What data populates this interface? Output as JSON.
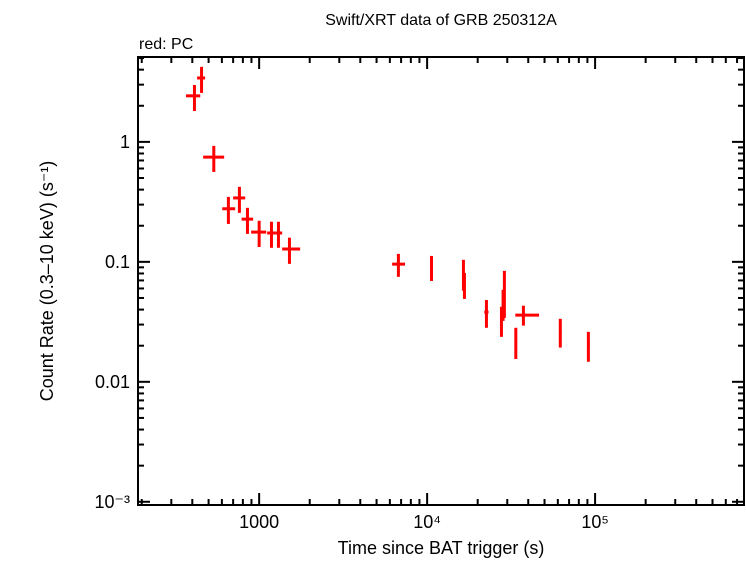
{
  "chart_data": {
    "type": "scatter",
    "title": "Swift/XRT data of GRB 250312A",
    "legend_note": "red: PC",
    "xlabel": "Time since BAT trigger (s)",
    "ylabel": "Count Rate (0.3–10 keV) (s⁻¹)",
    "x_scale": "log",
    "y_scale": "log",
    "xlim": [
      190,
      770000
    ],
    "ylim": [
      0.00094,
      5.1
    ],
    "x_ticks": [
      {
        "value": 1000,
        "label": "1000"
      },
      {
        "value": 10000,
        "label": "10⁴"
      },
      {
        "value": 100000,
        "label": "10⁵"
      }
    ],
    "y_ticks": [
      {
        "value": 1,
        "label": "1"
      },
      {
        "value": 0.1,
        "label": "0.1"
      },
      {
        "value": 0.01,
        "label": "0.01"
      },
      {
        "value": 0.001,
        "label": "10⁻³"
      }
    ],
    "grid": false,
    "series": [
      {
        "color": "#ff0000",
        "points": [
          {
            "t": 412,
            "t_lo": 367,
            "t_hi": 446,
            "rate": 2.42,
            "rate_lo": 1.81,
            "rate_hi": 2.98
          },
          {
            "t": 454,
            "t_lo": 427,
            "t_hi": 477,
            "rate": 3.41,
            "rate_lo": 2.56,
            "rate_hi": 4.22
          },
          {
            "t": 537,
            "t_lo": 464,
            "t_hi": 619,
            "rate": 0.746,
            "rate_lo": 0.562,
            "rate_hi": 0.926
          },
          {
            "t": 656,
            "t_lo": 603,
            "t_hi": 720,
            "rate": 0.277,
            "rate_lo": 0.207,
            "rate_hi": 0.348
          },
          {
            "t": 763,
            "t_lo": 700,
            "t_hi": 826,
            "rate": 0.341,
            "rate_lo": 0.256,
            "rate_hi": 0.422
          },
          {
            "t": 852,
            "t_lo": 786,
            "t_hi": 921,
            "rate": 0.227,
            "rate_lo": 0.171,
            "rate_hi": 0.282
          },
          {
            "t": 1000,
            "t_lo": 896,
            "t_hi": 1101,
            "rate": 0.177,
            "rate_lo": 0.133,
            "rate_hi": 0.22
          },
          {
            "t": 1184,
            "t_lo": 1116,
            "t_hi": 1245,
            "rate": 0.174,
            "rate_lo": 0.131,
            "rate_hi": 0.216
          },
          {
            "t": 1303,
            "t_lo": 1245,
            "t_hi": 1371,
            "rate": 0.174,
            "rate_lo": 0.131,
            "rate_hi": 0.216
          },
          {
            "t": 1515,
            "t_lo": 1371,
            "t_hi": 1754,
            "rate": 0.128,
            "rate_lo": 0.0962,
            "rate_hi": 0.159
          },
          {
            "t": 6745,
            "t_lo": 6191,
            "t_hi": 7389,
            "rate": 0.0957,
            "rate_lo": 0.075,
            "rate_hi": 0.1166
          },
          {
            "t": 10620,
            "t_lo": 10450,
            "t_hi": 10800,
            "rate": 0.0904,
            "rate_lo": 0.0693,
            "rate_hi": 0.112
          },
          {
            "t": 16450,
            "t_lo": 16200,
            "t_hi": 16700,
            "rate": 0.0805,
            "rate_lo": 0.0575,
            "rate_hi": 0.104
          },
          {
            "t": 16680,
            "t_lo": 16450,
            "t_hi": 16950,
            "rate": 0.0656,
            "rate_lo": 0.0491,
            "rate_hi": 0.0808
          },
          {
            "t": 22550,
            "t_lo": 21900,
            "t_hi": 23200,
            "rate": 0.0381,
            "rate_lo": 0.0282,
            "rate_hi": 0.0481
          },
          {
            "t": 27700,
            "t_lo": 27300,
            "t_hi": 28100,
            "rate": 0.0299,
            "rate_lo": 0.0237,
            "rate_hi": 0.0422
          },
          {
            "t": 28330,
            "t_lo": 27900,
            "t_hi": 28800,
            "rate": 0.0449,
            "rate_lo": 0.0322,
            "rate_hi": 0.0585
          },
          {
            "t": 28840,
            "t_lo": 28400,
            "t_hi": 29300,
            "rate": 0.0656,
            "rate_lo": 0.0341,
            "rate_hi": 0.0841
          },
          {
            "t": 33730,
            "t_lo": 33200,
            "t_hi": 34300,
            "rate": 0.0218,
            "rate_lo": 0.0155,
            "rate_hi": 0.0282
          },
          {
            "t": 37430,
            "t_lo": 33500,
            "t_hi": 46400,
            "rate": 0.036,
            "rate_lo": 0.0294,
            "rate_hi": 0.0431
          },
          {
            "t": 62060,
            "t_lo": 61000,
            "t_hi": 63200,
            "rate": 0.026,
            "rate_lo": 0.0193,
            "rate_hi": 0.0335
          },
          {
            "t": 91200,
            "t_lo": 89500,
            "t_hi": 93000,
            "rate": 0.0206,
            "rate_lo": 0.0147,
            "rate_hi": 0.0261
          }
        ]
      }
    ]
  }
}
